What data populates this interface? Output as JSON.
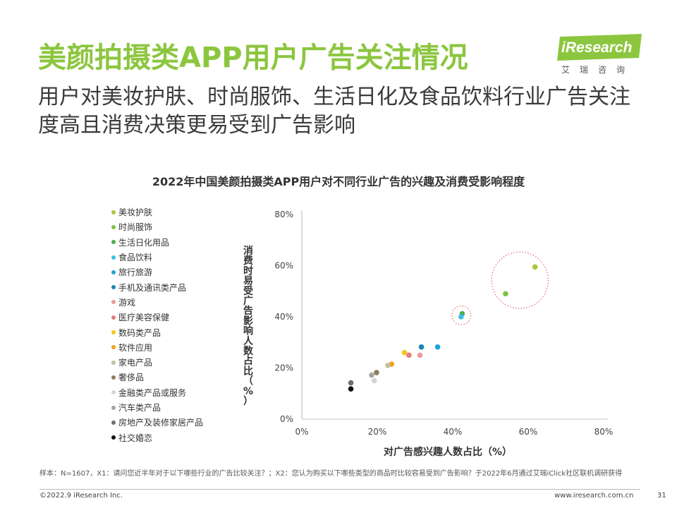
{
  "header": {
    "title": "美颜拍摄类APP用户广告关注情况",
    "subtitle": "用户对美妆护肤、时尚服饰、生活日化及食品饮料行业广告关注度高且消费决策更易受到广告影响"
  },
  "logo": {
    "name": "iResearch",
    "cn": "艾瑞咨询",
    "color": "#8cc63f"
  },
  "chart_data": {
    "type": "scatter",
    "title": "2022年中国美颜拍摄类APP用户对不同行业广告的兴趣及消费受影响程度",
    "xlabel": "对广告感兴趣人数占比（%）",
    "ylabel": "消费时易受广告影响人数占比（%）",
    "xlim": [
      0,
      80
    ],
    "ylim": [
      0,
      80
    ],
    "xticks": [
      "0%",
      "20%",
      "40%",
      "60%",
      "80%"
    ],
    "yticks": [
      "0%",
      "20%",
      "40%",
      "60%",
      "80%"
    ],
    "grid": false,
    "legend_position": "left",
    "series": [
      {
        "name": "美妆护肤",
        "color": "#a5c93a",
        "x": 61.8,
        "y": 59.5
      },
      {
        "name": "时尚服饰",
        "color": "#7cc242",
        "x": 54.0,
        "y": 49.0
      },
      {
        "name": "生活日化用品",
        "color": "#4aac4e",
        "x": 42.5,
        "y": 41.2
      },
      {
        "name": "食品饮料",
        "color": "#3cbfe8",
        "x": 42.2,
        "y": 40.0
      },
      {
        "name": "旅行旅游",
        "color": "#1ea3d9",
        "x": 36.0,
        "y": 28.2
      },
      {
        "name": "手机及通讯类产品",
        "color": "#1c84b8",
        "x": 31.7,
        "y": 28.2
      },
      {
        "name": "游戏",
        "color": "#ee9a9a",
        "x": 31.3,
        "y": 25.0
      },
      {
        "name": "医疗美容保健",
        "color": "#e57b7b",
        "x": 28.4,
        "y": 25.0
      },
      {
        "name": "数码类产品",
        "color": "#f5c518",
        "x": 27.2,
        "y": 26.0
      },
      {
        "name": "软件应用",
        "color": "#f2a21b",
        "x": 23.8,
        "y": 21.5
      },
      {
        "name": "家电产品",
        "color": "#c4bfa0",
        "x": 22.8,
        "y": 21.0
      },
      {
        "name": "奢侈品",
        "color": "#8c7d5a",
        "x": 19.8,
        "y": 18.2
      },
      {
        "name": "金融类产品或服务",
        "color": "#d4d4d4",
        "x": 19.2,
        "y": 15.0
      },
      {
        "name": "汽车类产品",
        "color": "#a5a5a5",
        "x": 18.5,
        "y": 17.2
      },
      {
        "name": "房地产及装修家居产品",
        "color": "#6e6e6e",
        "x": 13.0,
        "y": 14.2
      },
      {
        "name": "社交婚恋",
        "color": "#111111",
        "x": 13.0,
        "y": 11.8
      }
    ],
    "highlights": [
      {
        "center_x": 57.8,
        "center_y": 54.3,
        "radius_x": 7.5,
        "color": "#e06a73"
      },
      {
        "center_x": 42.3,
        "center_y": 40.6,
        "radius_x": 2.5,
        "color": "#e06a73"
      }
    ]
  },
  "footer": {
    "note": "样本：N=1607，X1：请问您近半年对于以下哪些行业的广告比较关注？；X2：您认为购买以下哪些类型的商品时比较容易受到广告影响？于2022年6月通过艾瑞iClick社区联机调研获得",
    "copyright": "©2022.9 iResearch Inc.",
    "website": "www.iresearch.com.cn",
    "page": "31"
  }
}
